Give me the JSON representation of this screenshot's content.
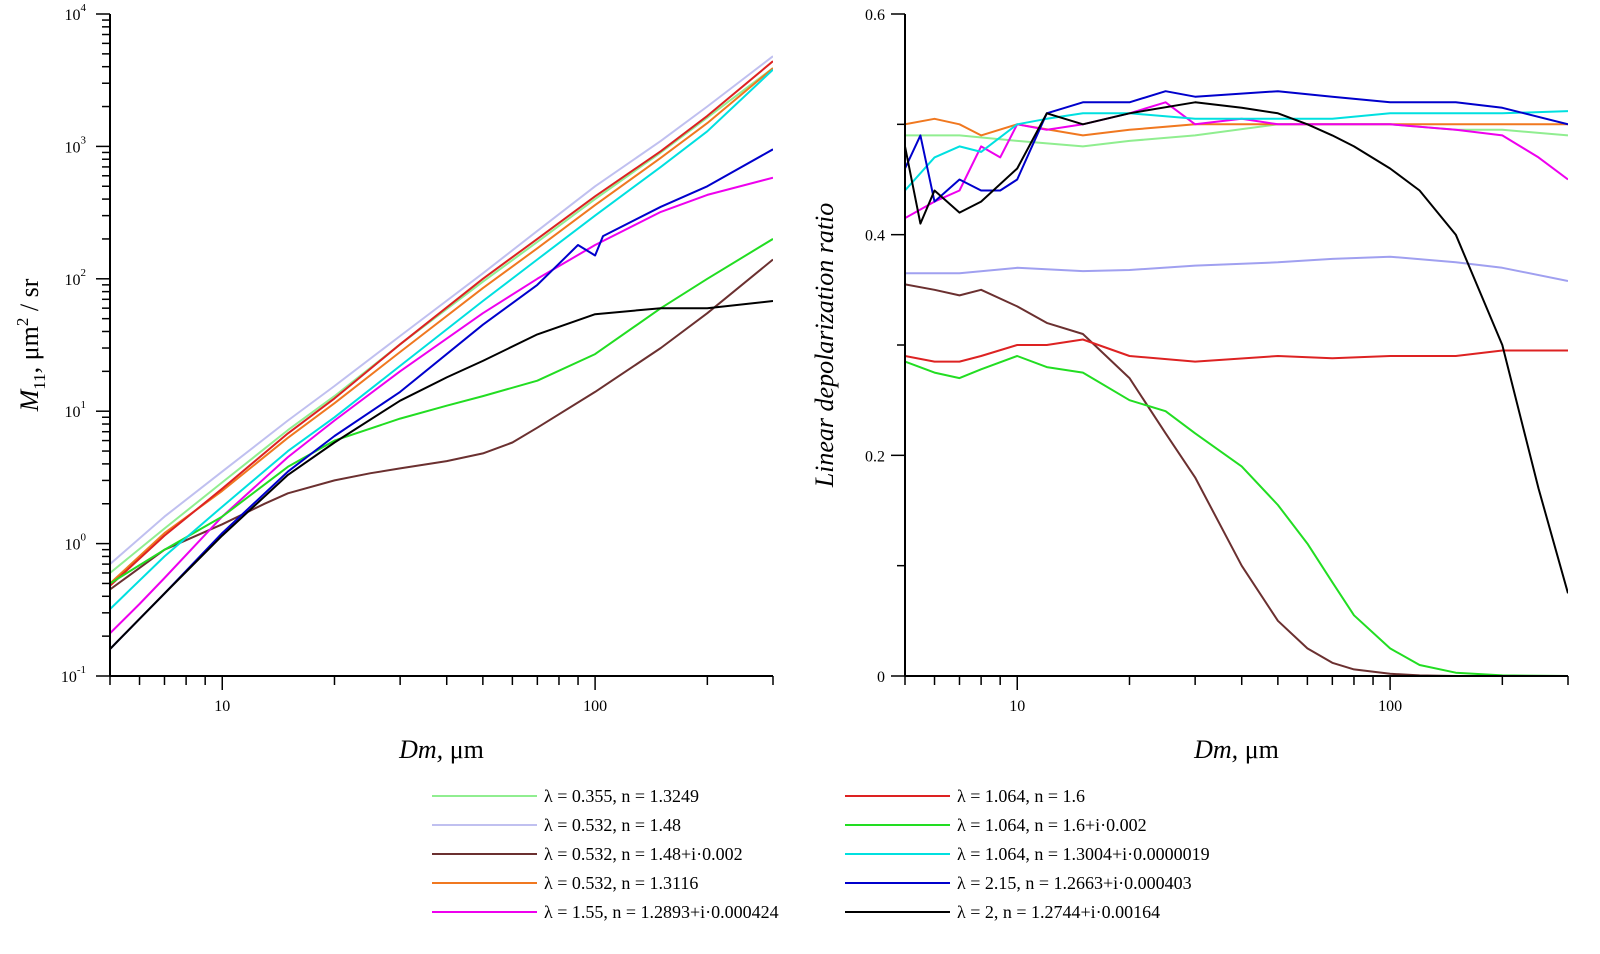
{
  "chart_data": [
    {
      "type": "line",
      "xscale": "log",
      "yscale": "log",
      "xlim": [
        5,
        300
      ],
      "ylim": [
        0.1,
        10000
      ],
      "xlabel": {
        "italic": "Dm,",
        "rest": " μm"
      },
      "ylabel": {
        "italic": "M",
        "sub": "11",
        "rest1": ", μm",
        "sup": "2",
        "rest2": " / sr"
      },
      "xticks": [
        {
          "value": 10,
          "label": "10"
        },
        {
          "value": 100,
          "label": "100"
        }
      ],
      "yticks": [
        {
          "value": 0.1,
          "base": "10",
          "exp": "-1"
        },
        {
          "value": 1,
          "base": "10",
          "exp": "0"
        },
        {
          "value": 10,
          "base": "10",
          "exp": "1"
        },
        {
          "value": 100,
          "base": "10",
          "exp": "2"
        },
        {
          "value": 1000,
          "base": "10",
          "exp": "3"
        },
        {
          "value": 10000,
          "base": "10",
          "exp": "4"
        }
      ],
      "grid": false,
      "series": [
        {
          "name": "λ = 0.355, n = 1.3249",
          "color": "#90ee90",
          "x": [
            5,
            7,
            10,
            15,
            20,
            30,
            50,
            70,
            100,
            150,
            200,
            300
          ],
          "y": [
            0.6,
            1.3,
            2.9,
            7.2,
            13,
            32,
            95,
            190,
            400,
            900,
            1650,
            3900
          ]
        },
        {
          "name": "λ = 0.532, n = 1.48",
          "color": "#c0c0f0",
          "x": [
            5,
            7,
            10,
            15,
            20,
            30,
            50,
            70,
            100,
            150,
            200,
            300
          ],
          "y": [
            0.7,
            1.6,
            3.5,
            8.5,
            15.5,
            37,
            110,
            230,
            500,
            1100,
            2000,
            4800
          ]
        },
        {
          "name": "λ = 0.532, n = 1.48+i·0.002",
          "color": "#6b3030",
          "x": [
            5,
            7,
            10,
            13,
            15,
            20,
            25,
            30,
            40,
            50,
            60,
            70,
            100,
            150,
            200,
            300
          ],
          "y": [
            0.45,
            0.9,
            1.4,
            2.0,
            2.4,
            3.0,
            3.4,
            3.7,
            4.2,
            4.8,
            5.8,
            7.5,
            14,
            30,
            55,
            140
          ]
        },
        {
          "name": "λ = 0.532, n = 1.3116",
          "color": "#f07820",
          "x": [
            5,
            7,
            10,
            15,
            20,
            30,
            50,
            70,
            100,
            150,
            200,
            300
          ],
          "y": [
            0.5,
            1.2,
            2.5,
            6.3,
            11.5,
            28,
            85,
            170,
            360,
            820,
            1500,
            3900
          ]
        },
        {
          "name": "λ = 1.55, n = 1.2893+i·0.000424",
          "color": "#ee00ee",
          "x": [
            5,
            6,
            7,
            10,
            15,
            20,
            30,
            50,
            70,
            100,
            150,
            200,
            300
          ],
          "y": [
            0.21,
            0.35,
            0.55,
            1.6,
            4.5,
            8.5,
            20,
            55,
            100,
            180,
            320,
            430,
            580
          ]
        },
        {
          "name": "λ = 1.064, n = 1.6",
          "color": "#dd2222",
          "x": [
            5,
            7,
            10,
            15,
            20,
            30,
            50,
            70,
            100,
            150,
            200,
            300
          ],
          "y": [
            0.48,
            1.15,
            2.6,
            6.8,
            12.5,
            32,
            100,
            200,
            420,
            920,
            1700,
            4400
          ]
        },
        {
          "name": "λ = 1.064, n = 1.6+i·0.002",
          "color": "#22dd22",
          "x": [
            5,
            7,
            10,
            15,
            20,
            30,
            40,
            50,
            70,
            100,
            150,
            200,
            300
          ],
          "y": [
            0.5,
            0.9,
            1.6,
            3.8,
            6.0,
            8.8,
            11,
            13,
            17,
            27,
            60,
            100,
            200
          ]
        },
        {
          "name": "λ = 1.064, n = 1.3004+i·0.0000019",
          "color": "#00e0e0",
          "x": [
            5,
            7,
            10,
            15,
            20,
            30,
            50,
            70,
            100,
            150,
            200,
            300
          ],
          "y": [
            0.32,
            0.8,
            1.9,
            5.0,
            9.0,
            22,
            68,
            140,
            300,
            700,
            1300,
            3800
          ]
        },
        {
          "name": "λ = 2.15, n = 1.2663+i·0.000403",
          "color": "#0000cc",
          "x": [
            5,
            6,
            7,
            10,
            15,
            20,
            30,
            50,
            70,
            80,
            90,
            100,
            105,
            150,
            200,
            300
          ],
          "y": [
            0.16,
            0.27,
            0.42,
            1.2,
            3.5,
            6.5,
            14,
            45,
            90,
            130,
            180,
            150,
            210,
            350,
            500,
            950
          ]
        },
        {
          "name": "λ = 2, n = 1.2744+i·0.00164",
          "color": "#000000",
          "x": [
            5,
            6,
            7,
            10,
            15,
            20,
            30,
            40,
            50,
            70,
            100,
            150,
            200,
            300
          ],
          "y": [
            0.16,
            0.27,
            0.42,
            1.15,
            3.3,
            5.8,
            12,
            18,
            24,
            38,
            54,
            60,
            60,
            68
          ]
        }
      ]
    },
    {
      "type": "line",
      "xscale": "log",
      "yscale": "linear",
      "xlim": [
        5,
        300
      ],
      "ylim": [
        0,
        0.6
      ],
      "xlabel": {
        "italic": "Dm,",
        "rest": " μm"
      },
      "ylabel": {
        "italic": "Linear depolarization ratio"
      },
      "xticks": [
        {
          "value": 10,
          "label": "10"
        },
        {
          "value": 100,
          "label": "100"
        }
      ],
      "yticks": [
        {
          "value": 0,
          "label": "0"
        },
        {
          "value": 0.2,
          "label": "0.2"
        },
        {
          "value": 0.4,
          "label": "0.4"
        },
        {
          "value": 0.6,
          "label": "0.6"
        }
      ],
      "grid": false,
      "series": [
        {
          "name": "λ = 0.355, n = 1.3249",
          "color": "#90ee90",
          "x": [
            5,
            7,
            10,
            15,
            20,
            30,
            50,
            70,
            100,
            150,
            200,
            300
          ],
          "y": [
            0.49,
            0.49,
            0.485,
            0.48,
            0.485,
            0.49,
            0.5,
            0.5,
            0.5,
            0.495,
            0.495,
            0.49
          ]
        },
        {
          "name": "λ = 0.532, n = 1.48",
          "color": "#a0a0f0",
          "x": [
            5,
            7,
            10,
            15,
            20,
            30,
            50,
            70,
            100,
            150,
            200,
            300
          ],
          "y": [
            0.365,
            0.365,
            0.37,
            0.367,
            0.368,
            0.372,
            0.375,
            0.378,
            0.38,
            0.375,
            0.37,
            0.358
          ]
        },
        {
          "name": "λ = 0.532, n = 1.48+i·0.002",
          "color": "#6b3030",
          "x": [
            5,
            6,
            7,
            8,
            10,
            12,
            15,
            20,
            25,
            30,
            40,
            50,
            60,
            70,
            80,
            100,
            120,
            150,
            300
          ],
          "y": [
            0.355,
            0.35,
            0.345,
            0.35,
            0.335,
            0.32,
            0.31,
            0.27,
            0.22,
            0.18,
            0.1,
            0.05,
            0.025,
            0.012,
            0.006,
            0.002,
            0.0005,
            0,
            0
          ]
        },
        {
          "name": "λ = 0.532, n = 1.3116",
          "color": "#f07820",
          "x": [
            5,
            6,
            7,
            8,
            10,
            15,
            20,
            30,
            50,
            70,
            100,
            150,
            200,
            300
          ],
          "y": [
            0.5,
            0.505,
            0.5,
            0.49,
            0.5,
            0.49,
            0.495,
            0.5,
            0.5,
            0.5,
            0.5,
            0.5,
            0.5,
            0.5
          ]
        },
        {
          "name": "λ = 1.55, n = 1.2893+i·0.000424",
          "color": "#ee00ee",
          "x": [
            5,
            6,
            7,
            8,
            9,
            10,
            12,
            15,
            20,
            25,
            30,
            40,
            50,
            70,
            100,
            150,
            200,
            250,
            300
          ],
          "y": [
            0.415,
            0.43,
            0.44,
            0.48,
            0.47,
            0.5,
            0.495,
            0.5,
            0.51,
            0.52,
            0.5,
            0.505,
            0.5,
            0.5,
            0.5,
            0.495,
            0.49,
            0.47,
            0.45
          ]
        },
        {
          "name": "λ = 1.064, n = 1.6",
          "color": "#dd2222",
          "x": [
            5,
            6,
            7,
            8,
            10,
            12,
            15,
            20,
            30,
            50,
            70,
            100,
            150,
            200,
            300
          ],
          "y": [
            0.29,
            0.285,
            0.285,
            0.29,
            0.3,
            0.3,
            0.305,
            0.29,
            0.285,
            0.29,
            0.288,
            0.29,
            0.29,
            0.295,
            0.295
          ]
        },
        {
          "name": "λ = 1.064, n = 1.6+i·0.002",
          "color": "#22dd22",
          "x": [
            5,
            6,
            7,
            8,
            10,
            12,
            15,
            20,
            25,
            30,
            40,
            50,
            60,
            70,
            80,
            100,
            120,
            150,
            200,
            300
          ],
          "y": [
            0.285,
            0.275,
            0.27,
            0.278,
            0.29,
            0.28,
            0.275,
            0.25,
            0.24,
            0.22,
            0.19,
            0.155,
            0.12,
            0.085,
            0.055,
            0.025,
            0.01,
            0.003,
            0.0005,
            0
          ]
        },
        {
          "name": "λ = 1.064, n = 1.3004+i·0.0000019",
          "color": "#00e0e0",
          "x": [
            5,
            6,
            7,
            8,
            10,
            12,
            15,
            20,
            30,
            50,
            70,
            100,
            150,
            200,
            300
          ],
          "y": [
            0.44,
            0.47,
            0.48,
            0.475,
            0.5,
            0.505,
            0.51,
            0.51,
            0.505,
            0.505,
            0.505,
            0.51,
            0.51,
            0.51,
            0.512
          ]
        },
        {
          "name": "λ = 2.15, n = 1.2663+i·0.000403",
          "color": "#0000cc",
          "x": [
            5,
            5.5,
            6,
            7,
            8,
            9,
            10,
            12,
            15,
            20,
            25,
            30,
            50,
            70,
            100,
            150,
            200,
            300
          ],
          "y": [
            0.46,
            0.49,
            0.43,
            0.45,
            0.44,
            0.44,
            0.45,
            0.51,
            0.52,
            0.52,
            0.53,
            0.525,
            0.53,
            0.525,
            0.52,
            0.52,
            0.515,
            0.5
          ]
        },
        {
          "name": "λ = 2, n = 1.2744+i·0.00164",
          "color": "#000000",
          "x": [
            5,
            5.5,
            6,
            7,
            8,
            10,
            12,
            15,
            20,
            30,
            40,
            50,
            60,
            70,
            80,
            100,
            120,
            150,
            200,
            250,
            300
          ],
          "y": [
            0.48,
            0.41,
            0.44,
            0.42,
            0.43,
            0.46,
            0.51,
            0.5,
            0.51,
            0.52,
            0.515,
            0.51,
            0.5,
            0.49,
            0.48,
            0.46,
            0.44,
            0.4,
            0.3,
            0.17,
            0.075
          ]
        }
      ]
    }
  ],
  "legend": {
    "placement": "bottom",
    "columns": [
      [
        "λ = 0.355, n = 1.3249",
        "λ = 0.532, n = 1.48",
        "λ = 0.532, n = 1.48+i·0.002",
        "λ = 0.532, n = 1.3116",
        "λ = 1.55, n = 1.2893+i·0.000424"
      ],
      [
        "λ = 1.064, n = 1.6",
        "λ = 1.064, n = 1.6+i·0.002",
        "λ = 1.064, n = 1.3004+i·0.0000019",
        "λ = 2.15, n = 1.2663+i·0.000403",
        "λ = 2, n = 1.2744+i·0.00164"
      ]
    ],
    "colors": [
      [
        "#90ee90",
        "#c0c0f0",
        "#6b3030",
        "#f07820",
        "#ee00ee"
      ],
      [
        "#dd2222",
        "#22dd22",
        "#00e0e0",
        "#0000cc",
        "#000000"
      ]
    ]
  }
}
